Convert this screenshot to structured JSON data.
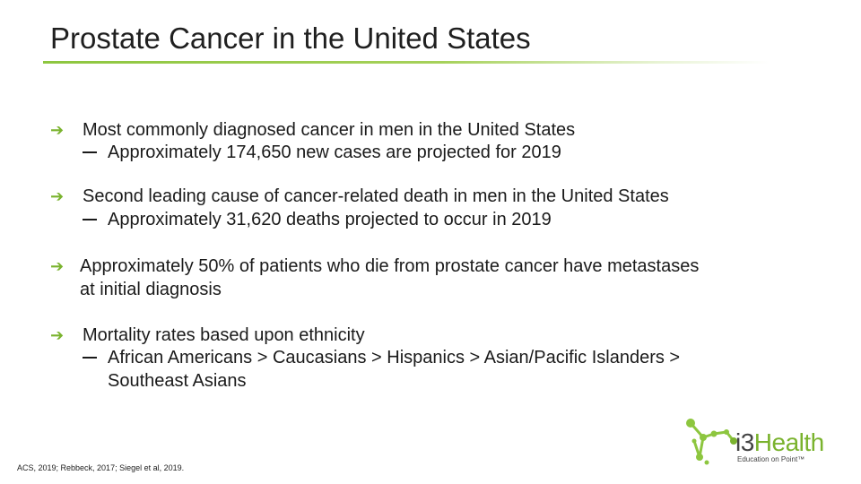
{
  "slide": {
    "title": "Prostate Cancer in the United States"
  },
  "bullets": [
    {
      "text": "Most commonly diagnosed cancer in men in the United States",
      "sub": "Approximately 174,650 new cases are projected for 2019"
    },
    {
      "text": "Second leading cause of cancer-related death in men in the United States",
      "sub": "Approximately 31,620 deaths projected to occur in 2019"
    },
    {
      "line1": "Approximately 50% of patients who die from prostate cancer have metastases",
      "line2": "at initial diagnosis"
    },
    {
      "text": "Mortality rates based upon ethnicity",
      "sub_line1": "African Americans > Caucasians > Hispanics > Asian/Pacific Islanders >",
      "sub_line2": "Southeast Asians"
    }
  ],
  "citation": "ACS, 2019; Rebbeck, 2017; Siegel et al, 2019.",
  "logo": {
    "brand_prefix": "i3",
    "brand_suffix": "Health",
    "tagline": "Education on Point™"
  },
  "colors": {
    "accent": "#7ab32e",
    "title_rule": "#8dc63f"
  },
  "icons": {
    "bullet": "arrow-right-icon",
    "sub_bullet": "dash-icon"
  }
}
